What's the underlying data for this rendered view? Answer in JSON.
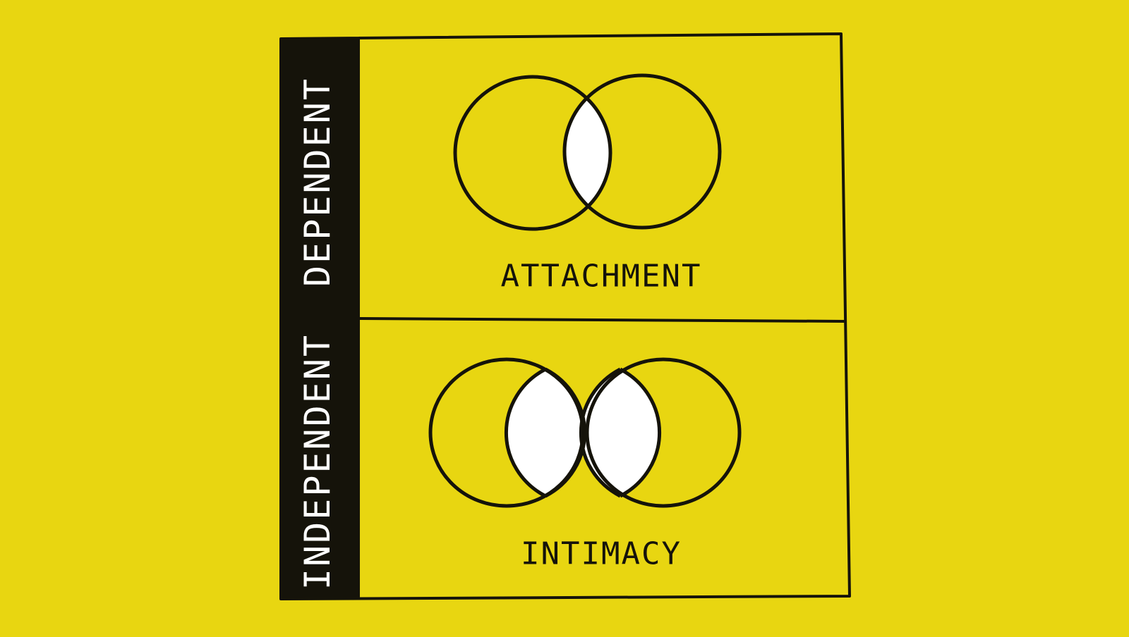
{
  "colors": {
    "background": "#e8d611",
    "ink": "#15130a",
    "highlight": "#ffffff"
  },
  "sidebar": {
    "top_label": "DEPENDENT",
    "bottom_label": "INDEPENDENT"
  },
  "panels": [
    {
      "label": "ATTACHMENT"
    },
    {
      "label": "INTIMACY"
    }
  ]
}
